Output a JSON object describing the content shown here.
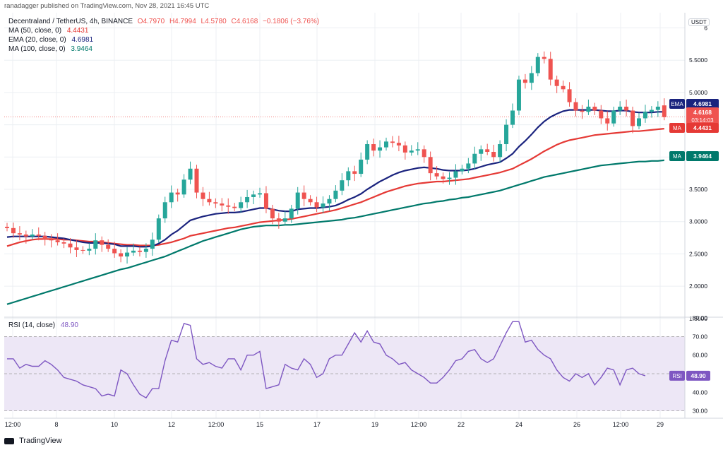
{
  "publisher": "ranadagger published on TradingView.com, Nov 28, 2021 16:45 UTC",
  "symbol": "Decentraland / TetherUS, 4h, BINANCE",
  "ohlc": {
    "o": "O4.7970",
    "h": "H4.7994",
    "l": "L4.5780",
    "c": "C4.6168",
    "chg": "−0.1806 (−3.76%)"
  },
  "indicators": [
    {
      "label": "MA (50, close, 0)",
      "value": "4.4431",
      "color": "#e53935"
    },
    {
      "label": "EMA (20, close, 0)",
      "value": "4.6981",
      "color": "#1a237e"
    },
    {
      "label": "MA (100, close, 0)",
      "value": "3.9464",
      "color": "#00796b"
    }
  ],
  "currency": "USDT",
  "price_badges": [
    {
      "tag": "EMA",
      "value": "4.6981",
      "color": "#1a237e"
    },
    {
      "tag": "",
      "value": "4.6168",
      "sub": "03:14:03",
      "color": "#ef5350"
    },
    {
      "tag": "MA",
      "value": "4.4431",
      "color": "#e53935"
    },
    {
      "tag": "MA",
      "value": "3.9464",
      "color": "#00796b"
    }
  ],
  "rsi": {
    "label": "RSI (14, close)",
    "value": "48.90",
    "tag": "RSI",
    "color": "#7e57c2"
  },
  "footer": {
    "brand": "TradingView"
  },
  "colors": {
    "up": "#26a69a",
    "down": "#ef5350",
    "grid": "#eceff3",
    "rsi_band": "#ede7f6"
  },
  "chart_data": [
    {
      "type": "candlestick",
      "title": "Decentraland / TetherUS, 4h, BINANCE",
      "x_tick_labels": [
        "12:00",
        "8",
        "10",
        "12",
        "12:00",
        "15",
        "17",
        "19",
        "12:00",
        "22",
        "24",
        "26",
        "12:00",
        "29"
      ],
      "y_tick_labels": [
        "1.5000",
        "2.0000",
        "2.5000",
        "3.0000",
        "3.5000",
        "4.0000",
        "4.5000",
        "5.0000",
        "5.5000",
        "6"
      ],
      "ylim": [
        1.5,
        6.0
      ],
      "close": [
        2.9,
        2.82,
        2.8,
        2.77,
        2.8,
        2.78,
        2.72,
        2.71,
        2.68,
        2.66,
        2.6,
        2.56,
        2.55,
        2.58,
        2.71,
        2.64,
        2.58,
        2.51,
        2.46,
        2.52,
        2.55,
        2.53,
        2.58,
        2.72,
        3.05,
        3.3,
        3.45,
        3.42,
        3.65,
        3.82,
        3.45,
        3.35,
        3.3,
        3.28,
        3.25,
        3.23,
        3.21,
        3.3,
        3.38,
        3.42,
        3.44,
        3.2,
        3.05,
        3.0,
        3.05,
        3.2,
        3.45,
        3.35,
        3.3,
        3.22,
        3.28,
        3.35,
        3.48,
        3.64,
        3.78,
        3.74,
        3.96,
        4.2,
        4.1,
        4.15,
        4.24,
        4.22,
        4.18,
        4.07,
        4.1,
        4.12,
        4.0,
        3.75,
        3.7,
        3.66,
        3.68,
        3.78,
        3.82,
        3.9,
        4.05,
        4.12,
        4.08,
        4.0,
        4.2,
        4.5,
        4.72,
        5.2,
        5.15,
        5.3,
        5.55,
        5.52,
        5.2,
        5.1,
        5.05,
        4.85,
        4.72,
        4.7,
        4.78,
        4.72,
        4.6,
        4.52,
        4.72,
        4.78,
        4.72,
        4.48,
        4.6,
        4.7,
        4.73,
        4.78,
        4.62
      ],
      "open": [
        2.92,
        2.9,
        2.82,
        2.8,
        2.77,
        2.8,
        2.78,
        2.72,
        2.71,
        2.68,
        2.66,
        2.6,
        2.56,
        2.55,
        2.58,
        2.71,
        2.64,
        2.58,
        2.51,
        2.46,
        2.52,
        2.55,
        2.53,
        2.58,
        2.72,
        3.05,
        3.3,
        3.45,
        3.42,
        3.65,
        3.82,
        3.45,
        3.35,
        3.3,
        3.28,
        3.25,
        3.23,
        3.21,
        3.3,
        3.38,
        3.42,
        3.44,
        3.2,
        3.05,
        3.0,
        3.05,
        3.2,
        3.45,
        3.35,
        3.3,
        3.22,
        3.28,
        3.35,
        3.48,
        3.64,
        3.78,
        3.74,
        3.96,
        4.2,
        4.1,
        4.15,
        4.24,
        4.22,
        4.18,
        4.07,
        4.1,
        4.12,
        4.0,
        3.75,
        3.7,
        3.66,
        3.68,
        3.78,
        3.82,
        3.9,
        4.05,
        4.12,
        4.08,
        4.0,
        4.2,
        4.5,
        4.72,
        5.2,
        5.15,
        5.3,
        5.55,
        5.52,
        5.2,
        5.1,
        5.05,
        4.85,
        4.72,
        4.7,
        4.78,
        4.72,
        4.6,
        4.52,
        4.72,
        4.78,
        4.72,
        4.48,
        4.6,
        4.7,
        4.73,
        4.8
      ],
      "ema20": [
        2.76,
        2.77,
        2.77,
        2.77,
        2.77,
        2.77,
        2.77,
        2.76,
        2.75,
        2.74,
        2.72,
        2.7,
        2.68,
        2.67,
        2.67,
        2.67,
        2.66,
        2.65,
        2.62,
        2.62,
        2.62,
        2.61,
        2.61,
        2.62,
        2.66,
        2.72,
        2.8,
        2.86,
        2.94,
        3.02,
        3.05,
        3.08,
        3.1,
        3.12,
        3.13,
        3.14,
        3.14,
        3.15,
        3.17,
        3.19,
        3.21,
        3.21,
        3.19,
        3.17,
        3.16,
        3.16,
        3.19,
        3.2,
        3.21,
        3.21,
        3.22,
        3.23,
        3.25,
        3.29,
        3.34,
        3.38,
        3.43,
        3.5,
        3.56,
        3.62,
        3.67,
        3.72,
        3.76,
        3.79,
        3.81,
        3.83,
        3.84,
        3.83,
        3.82,
        3.8,
        3.79,
        3.79,
        3.79,
        3.8,
        3.82,
        3.85,
        3.88,
        3.9,
        3.92,
        3.98,
        4.05,
        4.16,
        4.25,
        4.35,
        4.46,
        4.55,
        4.62,
        4.67,
        4.71,
        4.73,
        4.73,
        4.73,
        4.73,
        4.73,
        4.72,
        4.71,
        4.71,
        4.72,
        4.72,
        4.7,
        4.69,
        4.69,
        4.69,
        4.7,
        4.7
      ],
      "ma50": [
        2.62,
        2.65,
        2.68,
        2.7,
        2.72,
        2.73,
        2.73,
        2.73,
        2.73,
        2.72,
        2.72,
        2.71,
        2.7,
        2.69,
        2.69,
        2.68,
        2.67,
        2.66,
        2.65,
        2.64,
        2.64,
        2.63,
        2.63,
        2.63,
        2.64,
        2.66,
        2.68,
        2.71,
        2.74,
        2.78,
        2.8,
        2.82,
        2.84,
        2.86,
        2.88,
        2.9,
        2.91,
        2.93,
        2.95,
        2.97,
        2.99,
        3.0,
        3.01,
        3.02,
        3.03,
        3.04,
        3.06,
        3.08,
        3.1,
        3.12,
        3.14,
        3.16,
        3.18,
        3.21,
        3.24,
        3.27,
        3.3,
        3.34,
        3.38,
        3.42,
        3.46,
        3.49,
        3.52,
        3.55,
        3.57,
        3.59,
        3.6,
        3.61,
        3.62,
        3.62,
        3.63,
        3.64,
        3.65,
        3.66,
        3.68,
        3.7,
        3.72,
        3.74,
        3.76,
        3.79,
        3.82,
        3.87,
        3.92,
        3.97,
        4.03,
        4.09,
        4.14,
        4.19,
        4.23,
        4.26,
        4.28,
        4.3,
        4.32,
        4.34,
        4.35,
        4.36,
        4.37,
        4.38,
        4.39,
        4.4,
        4.4,
        4.41,
        4.42,
        4.43,
        4.44
      ],
      "ma100": [
        1.72,
        1.75,
        1.78,
        1.81,
        1.84,
        1.87,
        1.9,
        1.93,
        1.96,
        1.99,
        2.02,
        2.05,
        2.08,
        2.11,
        2.14,
        2.17,
        2.2,
        2.23,
        2.26,
        2.28,
        2.31,
        2.34,
        2.37,
        2.4,
        2.43,
        2.46,
        2.5,
        2.54,
        2.58,
        2.62,
        2.66,
        2.7,
        2.73,
        2.76,
        2.79,
        2.82,
        2.85,
        2.88,
        2.9,
        2.92,
        2.93,
        2.94,
        2.94,
        2.94,
        2.95,
        2.95,
        2.96,
        2.97,
        2.98,
        2.99,
        3.0,
        3.01,
        3.02,
        3.03,
        3.05,
        3.06,
        3.08,
        3.1,
        3.12,
        3.14,
        3.16,
        3.18,
        3.2,
        3.22,
        3.24,
        3.26,
        3.28,
        3.29,
        3.31,
        3.32,
        3.34,
        3.35,
        3.37,
        3.38,
        3.4,
        3.42,
        3.44,
        3.46,
        3.48,
        3.51,
        3.54,
        3.57,
        3.6,
        3.63,
        3.66,
        3.69,
        3.71,
        3.73,
        3.75,
        3.77,
        3.79,
        3.81,
        3.83,
        3.85,
        3.87,
        3.88,
        3.89,
        3.9,
        3.91,
        3.92,
        3.93,
        3.93,
        3.94,
        3.94,
        3.95
      ]
    },
    {
      "type": "line",
      "title": "RSI (14, close)",
      "y_tick_labels": [
        "30.00",
        "40.00",
        "50.00",
        "60.00",
        "70.00",
        "80.00"
      ],
      "ylim": [
        27,
        82
      ],
      "bands": [
        30,
        50,
        70
      ],
      "values": [
        58,
        58,
        53,
        55,
        54,
        54,
        57,
        55,
        52,
        48,
        47,
        46,
        44,
        43,
        42,
        38,
        39,
        38,
        52,
        50,
        44,
        39,
        37,
        42,
        42,
        57,
        68,
        67,
        77,
        76,
        58,
        55,
        56,
        54,
        53,
        58,
        58,
        52,
        60,
        60,
        62,
        42,
        43,
        44,
        55,
        53,
        52,
        58,
        55,
        48,
        50,
        58,
        60,
        60,
        66,
        72,
        67,
        73,
        67,
        66,
        60,
        58,
        55,
        56,
        52,
        50,
        48,
        45,
        45,
        48,
        52,
        57,
        58,
        62,
        63,
        58,
        56,
        58,
        65,
        72,
        78,
        78,
        67,
        68,
        63,
        60,
        58,
        52,
        48,
        46,
        50,
        48,
        50,
        44,
        48,
        53,
        52,
        44,
        52,
        53,
        50,
        48.9
      ]
    }
  ]
}
